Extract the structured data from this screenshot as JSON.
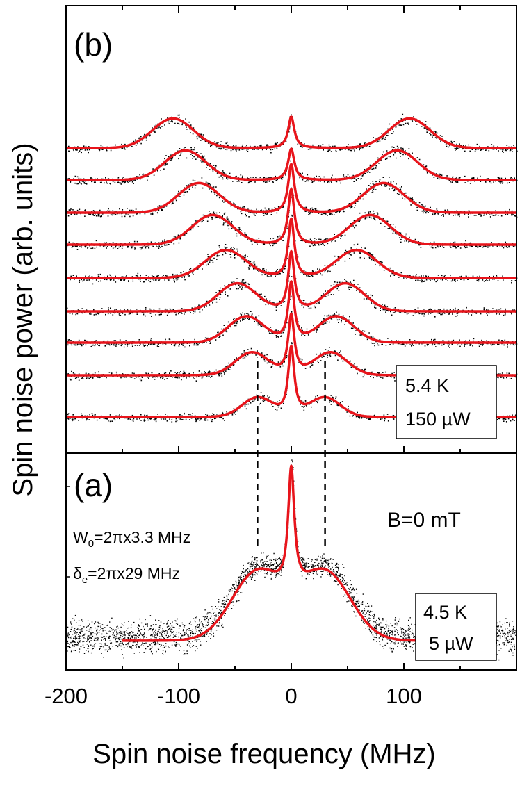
{
  "chart_data": {
    "type": "line",
    "xlabel": "Spin noise frequency (MHz)",
    "ylabel": "Spin noise power (arb. units)",
    "xlim": [
      -200,
      200
    ],
    "xticks": [
      -200,
      -100,
      0,
      100
    ],
    "x_tick_labels": [
      "-200",
      "-100",
      "0",
      "100"
    ],
    "panels": [
      {
        "label": "(b)",
        "temperature": "5.4 K",
        "power": "150 µW",
        "series_description": "measured spectra (black points) with fits (red lines), vertically offset, one per magnetic field",
        "spectra": [
          {
            "satellite_peak_mhz": 30,
            "satellite_height": 0.55,
            "satellite_width_mhz": 12,
            "central_height": 1.95
          },
          {
            "satellite_peak_mhz": 35,
            "satellite_height": 0.65,
            "satellite_width_mhz": 13,
            "central_height": 1.7
          },
          {
            "satellite_peak_mhz": 40,
            "satellite_height": 0.75,
            "satellite_width_mhz": 14,
            "central_height": 1.7
          },
          {
            "satellite_peak_mhz": 48,
            "satellite_height": 0.8,
            "satellite_width_mhz": 15,
            "central_height": 1.7
          },
          {
            "satellite_peak_mhz": 58,
            "satellite_height": 0.8,
            "satellite_width_mhz": 16,
            "central_height": 1.7
          },
          {
            "satellite_peak_mhz": 70,
            "satellite_height": 0.85,
            "satellite_width_mhz": 16,
            "central_height": 1.6
          },
          {
            "satellite_peak_mhz": 82,
            "satellite_height": 0.85,
            "satellite_width_mhz": 16,
            "central_height": 1.4
          },
          {
            "satellite_peak_mhz": 94,
            "satellite_height": 0.85,
            "satellite_width_mhz": 16,
            "central_height": 0.9
          },
          {
            "satellite_peak_mhz": 105,
            "satellite_height": 0.85,
            "satellite_width_mhz": 16,
            "central_height": 0.9
          }
        ]
      },
      {
        "label": "(a)",
        "temperature": "4.5 K",
        "power": "5 µW",
        "field": "B=0 mT",
        "params": [
          "W0=2πx3.3 MHz",
          "δe=2πx29 MHz"
        ],
        "satellite_peak_mhz": 30,
        "central_peak_mhz": 0,
        "fit_range_mhz": [
          -150,
          150
        ]
      }
    ],
    "dashed_guides_mhz": [
      -30,
      30
    ]
  },
  "panel_b": {
    "label": "(b)",
    "conditions": {
      "temperature": "5.4 K",
      "power": "150 µW"
    }
  },
  "panel_a": {
    "label": "(a)",
    "conditions": {
      "temperature": "4.5 K",
      "power": "5 µW"
    },
    "field_label": "B=0 mT",
    "param_w0": {
      "symbol": "W",
      "subscript": "0",
      "rest": "=2πx3.3 MHz"
    },
    "param_de": {
      "symbol": "δ",
      "subscript": "e",
      "rest": "=2πx29 MHz"
    }
  },
  "colors": {
    "data": "#000000",
    "fit": "#e8141b",
    "axis": "#000000"
  }
}
